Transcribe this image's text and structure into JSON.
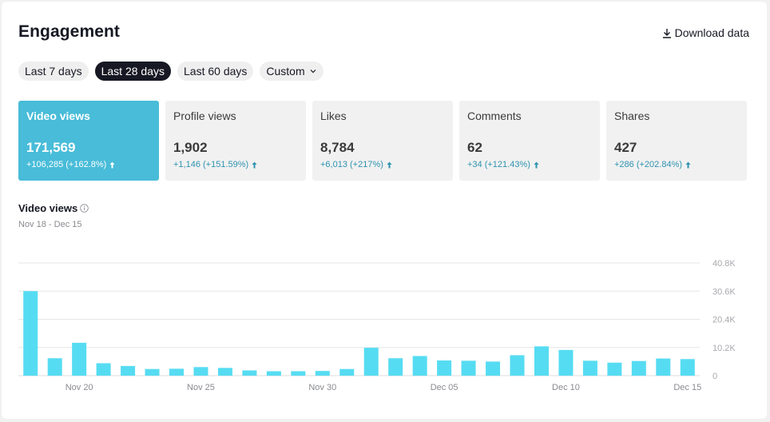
{
  "header": {
    "title": "Engagement",
    "download_label": "Download data"
  },
  "ranges": {
    "items": [
      "Last 7 days",
      "Last 28 days",
      "Last 60 days"
    ],
    "custom_label": "Custom",
    "selected": "Last 28 days"
  },
  "metrics": [
    {
      "label": "Video views",
      "value": "171,569",
      "change": "+106,285 (+162.8%)",
      "active": true
    },
    {
      "label": "Profile views",
      "value": "1,902",
      "change": "+1,146 (+151.59%)",
      "active": false
    },
    {
      "label": "Likes",
      "value": "8,784",
      "change": "+6,013 (+217%)",
      "active": false
    },
    {
      "label": "Comments",
      "value": "62",
      "change": "+34 (+121.43%)",
      "active": false
    },
    {
      "label": "Shares",
      "value": "427",
      "change": "+286 (+202.84%)",
      "active": false
    }
  ],
  "chart_section": {
    "title": "Video views",
    "date_range": "Nov 18 - Dec 15"
  },
  "colors": {
    "accent": "#48bcd8",
    "bar": "#56dcf2",
    "change_text": "#2e93b0",
    "active_pill": "#161823"
  },
  "icons": {
    "download": "download-icon",
    "info": "info-icon",
    "up_arrow": "arrow-up-icon",
    "chevron": "chevron-down-icon"
  },
  "chart_data": {
    "type": "bar",
    "categories": [
      "Nov 18",
      "Nov 19",
      "Nov 20",
      "Nov 21",
      "Nov 22",
      "Nov 23",
      "Nov 24",
      "Nov 25",
      "Nov 26",
      "Nov 27",
      "Nov 28",
      "Nov 29",
      "Nov 30",
      "Dec 01",
      "Dec 02",
      "Dec 03",
      "Dec 04",
      "Dec 05",
      "Dec 06",
      "Dec 07",
      "Dec 08",
      "Dec 09",
      "Dec 10",
      "Dec 11",
      "Dec 12",
      "Dec 13",
      "Dec 14",
      "Dec 15"
    ],
    "values": [
      30600,
      6300,
      11900,
      4500,
      3500,
      2400,
      2500,
      3100,
      2800,
      1900,
      1600,
      1600,
      1700,
      2400,
      10100,
      6300,
      7100,
      5500,
      5400,
      5100,
      7400,
      10600,
      9300,
      5400,
      4700,
      5300,
      6200,
      6000
    ],
    "x_tick_labels": [
      "Nov 20",
      "Nov 25",
      "Nov 30",
      "Dec 05",
      "Dec 10",
      "Dec 15"
    ],
    "y_tick_labels": [
      "0",
      "10.2K",
      "20.4K",
      "30.6K",
      "40.8K"
    ],
    "ylim": [
      0,
      40800
    ],
    "grid": true
  }
}
